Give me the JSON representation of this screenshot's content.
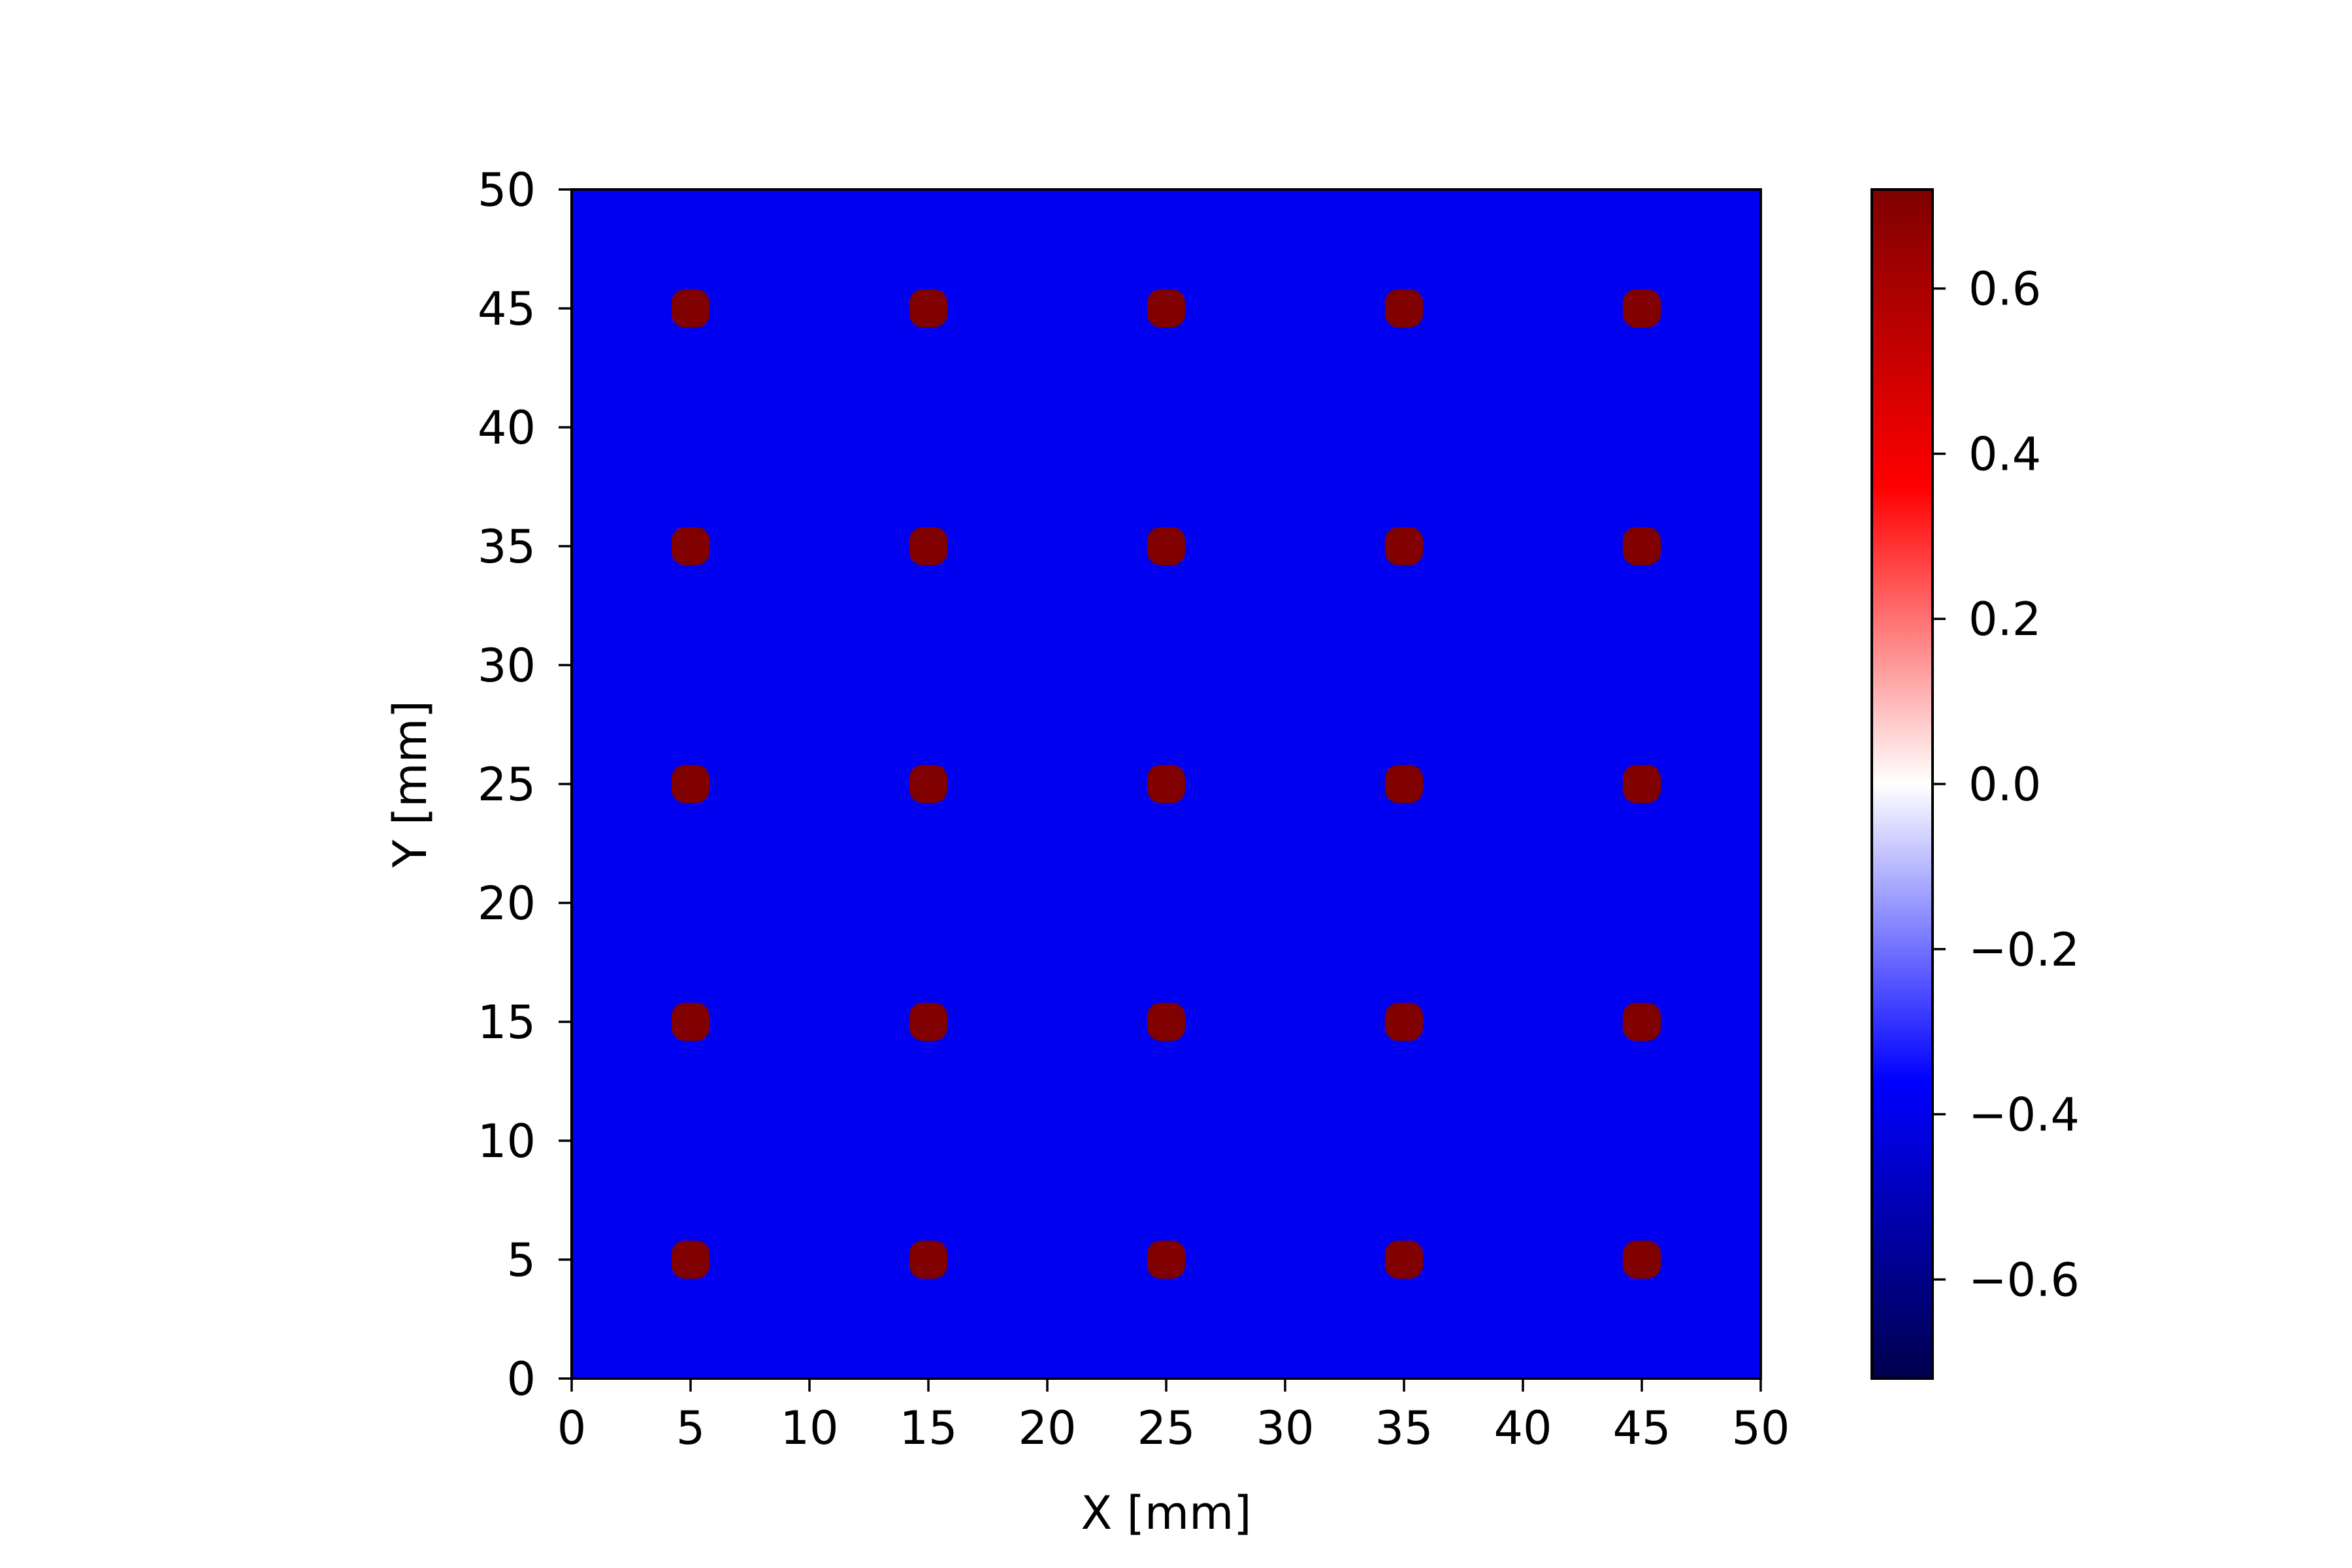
{
  "chart_data": {
    "type": "heatmap",
    "title": "",
    "xlabel": "X [mm]",
    "ylabel": "Y [mm]",
    "xlim": [
      0,
      50
    ],
    "ylim": [
      0,
      50
    ],
    "xticks": [
      0,
      5,
      10,
      15,
      20,
      25,
      30,
      35,
      40,
      45,
      50
    ],
    "yticks": [
      0,
      5,
      10,
      15,
      20,
      25,
      30,
      35,
      40,
      45,
      50
    ],
    "xtick_labels": [
      "0",
      "5",
      "10",
      "15",
      "20",
      "25",
      "30",
      "35",
      "40",
      "45",
      "50"
    ],
    "ytick_labels": [
      "0",
      "5",
      "10",
      "15",
      "20",
      "25",
      "30",
      "35",
      "40",
      "45",
      "50"
    ],
    "grid": false,
    "background_value": -0.4,
    "spot_value": 0.72,
    "spots": [
      {
        "x": 5,
        "y": 5
      },
      {
        "x": 15,
        "y": 5
      },
      {
        "x": 25,
        "y": 5
      },
      {
        "x": 35,
        "y": 5
      },
      {
        "x": 45,
        "y": 5
      },
      {
        "x": 5,
        "y": 15
      },
      {
        "x": 15,
        "y": 15
      },
      {
        "x": 25,
        "y": 15
      },
      {
        "x": 35,
        "y": 15
      },
      {
        "x": 45,
        "y": 15
      },
      {
        "x": 5,
        "y": 25
      },
      {
        "x": 15,
        "y": 25
      },
      {
        "x": 25,
        "y": 25
      },
      {
        "x": 35,
        "y": 25
      },
      {
        "x": 45,
        "y": 25
      },
      {
        "x": 5,
        "y": 35
      },
      {
        "x": 15,
        "y": 35
      },
      {
        "x": 25,
        "y": 35
      },
      {
        "x": 35,
        "y": 35
      },
      {
        "x": 45,
        "y": 35
      },
      {
        "x": 5,
        "y": 45
      },
      {
        "x": 15,
        "y": 45
      },
      {
        "x": 25,
        "y": 45
      },
      {
        "x": 35,
        "y": 45
      },
      {
        "x": 45,
        "y": 45
      }
    ],
    "colorbar": {
      "colormap": "seismic",
      "range": [
        -0.72,
        0.72
      ],
      "ticks": [
        -0.6,
        -0.4,
        -0.2,
        0.0,
        0.2,
        0.4,
        0.6
      ],
      "tick_labels": [
        "−0.6",
        "−0.4",
        "−0.2",
        "0.0",
        "0.2",
        "0.4",
        "0.6"
      ]
    },
    "colors": {
      "background": "#0000f0",
      "spot": "#800000"
    }
  }
}
